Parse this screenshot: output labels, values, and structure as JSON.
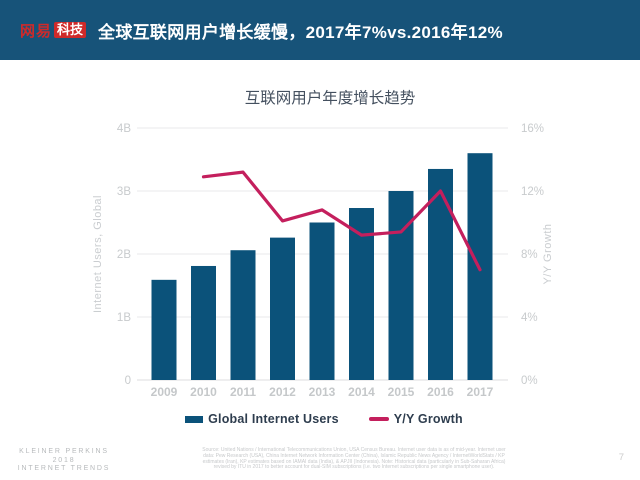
{
  "header": {
    "logo": {
      "brand": "网易",
      "suffix": "科技"
    },
    "title": "全球互联网用户增长缓慢，2017年7%vs.2016年12%"
  },
  "chart_data": {
    "type": "bar+line",
    "title": "互联网用户年度增长趋势",
    "categories": [
      "2009",
      "2010",
      "2011",
      "2012",
      "2013",
      "2014",
      "2015",
      "2016",
      "2017"
    ],
    "series": [
      {
        "name": "Global Internet Users",
        "type": "bar",
        "axis": "left",
        "color": "#0b527a",
        "values": [
          1.59,
          1.81,
          2.06,
          2.26,
          2.5,
          2.73,
          3.0,
          3.35,
          3.6
        ]
      },
      {
        "name": "Y/Y Growth",
        "type": "line",
        "axis": "right",
        "color": "#c41f5d",
        "values": [
          null,
          12.9,
          13.2,
          10.1,
          10.8,
          9.2,
          9.4,
          12.0,
          7.0
        ]
      }
    ],
    "left_axis": {
      "label": "Internet Users, Global",
      "min": 0,
      "max": 4,
      "unit": "B",
      "ticks": [
        "0",
        "1B",
        "2B",
        "3B",
        "4B"
      ]
    },
    "right_axis": {
      "label": "Y/Y Growth",
      "min": 0,
      "max": 16,
      "unit": "%",
      "ticks": [
        "0%",
        "4%",
        "8%",
        "12%",
        "16%"
      ]
    },
    "grid": true,
    "legend_position": "bottom"
  },
  "footer": {
    "brand_lines": [
      "KLEINER PERKINS",
      "2018",
      "INTERNET TRENDS"
    ],
    "source_lines": [
      "Source: United Nations / International Telecommunications Union, USA Census Bureau. Internet user data is as of mid-year. Internet user",
      "data: Pew Research (USA), China Internet Network Information Center (China), Islamic Republic News Agency / InternetWorldStats / KP",
      "estimates (Iran), KP estimates based on IAMAI data (India), & APJII (Indonesia). Note: Historical data (particularly in Sub-Saharan Africa)",
      "revised by ITU in 2017 to better account for dual-SIM subscriptions (i.e. two Internet subscriptions per single smartphone user)."
    ],
    "page_number": "7"
  },
  "colors": {
    "header_bg": "#175379",
    "brand_red": "#cf2a2a",
    "bar_blue": "#0b527a",
    "line_crimson": "#c41f5d",
    "axis_gray": "#c8cbcd",
    "title_gray": "#44505f"
  }
}
